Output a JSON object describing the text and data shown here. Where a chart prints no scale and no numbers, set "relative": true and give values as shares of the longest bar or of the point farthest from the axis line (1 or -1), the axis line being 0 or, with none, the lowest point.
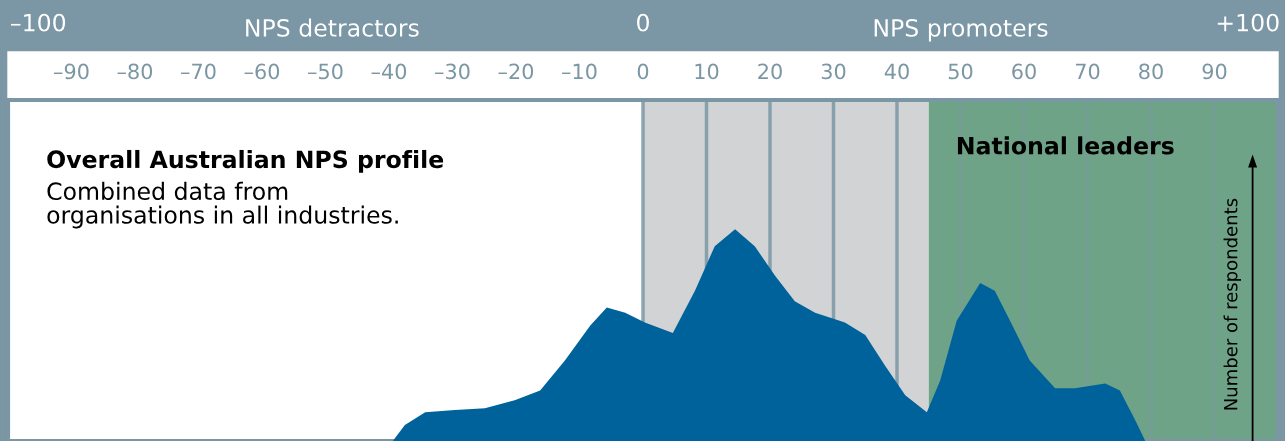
{
  "chart_data": {
    "type": "area",
    "title": "Overall Australian NPS profile",
    "subtitle": "Combined data from\norganisations in all industries.",
    "ylabel": "Number of respondents",
    "relative": true,
    "x": [
      -39.4,
      -37.5,
      -34.3,
      -29.6,
      -24.9,
      -20.2,
      -16.2,
      -12.3,
      -8.3,
      -5.7,
      -2.8,
      0.3,
      4.7,
      8.2,
      11.3,
      14.5,
      17.6,
      20.8,
      23.9,
      27.1,
      31.8,
      35.0,
      38.1,
      41.3,
      44.7,
      46.8,
      49.4,
      53.1,
      55.4,
      57.8,
      60.9,
      64.9,
      68.0,
      72.8,
      75.1,
      77.5,
      79.1
    ],
    "series": [
      {
        "color": "#00629b",
        "values": [
          0,
          0.075,
          0.136,
          0.146,
          0.155,
          0.192,
          0.239,
          0.38,
          0.545,
          0.63,
          0.606,
          0.56,
          0.51,
          0.71,
          0.92,
          1.0,
          0.92,
          0.78,
          0.66,
          0.606,
          0.56,
          0.5,
          0.357,
          0.216,
          0.136,
          0.286,
          0.568,
          0.746,
          0.709,
          0.568,
          0.38,
          0.249,
          0.249,
          0.272,
          0.239,
          0.099,
          0
        ]
      }
    ],
    "xlim": [
      -100,
      100
    ],
    "xticks": [
      {
        "value": -90,
        "label": "–90"
      },
      {
        "value": -80,
        "label": "–80"
      },
      {
        "value": -70,
        "label": "–70"
      },
      {
        "value": -60,
        "label": "–60"
      },
      {
        "value": -50,
        "label": "–50"
      },
      {
        "value": -40,
        "label": "–40"
      },
      {
        "value": -30,
        "label": "–30"
      },
      {
        "value": -20,
        "label": "–20"
      },
      {
        "value": -10,
        "label": "–10"
      },
      0,
      10,
      20,
      30,
      40,
      50,
      60,
      70,
      80,
      90
    ],
    "x2lim": [
      -105,
      105
    ],
    "x2ticks": [
      {
        "value": -100,
        "label": "–100"
      },
      0,
      {
        "value": 100,
        "label": "+100"
      }
    ],
    "annotations": [
      "NPS detractors",
      "NPS promoters"
    ],
    "bands": [
      {
        "axis": "x",
        "from": 0,
        "to": 45,
        "label": null,
        "color": "#d2d3d5"
      },
      {
        "axis": "x",
        "from": 45,
        "to": 100,
        "label": "National leaders",
        "color": "#6fa388"
      }
    ],
    "grid": "x"
  }
}
